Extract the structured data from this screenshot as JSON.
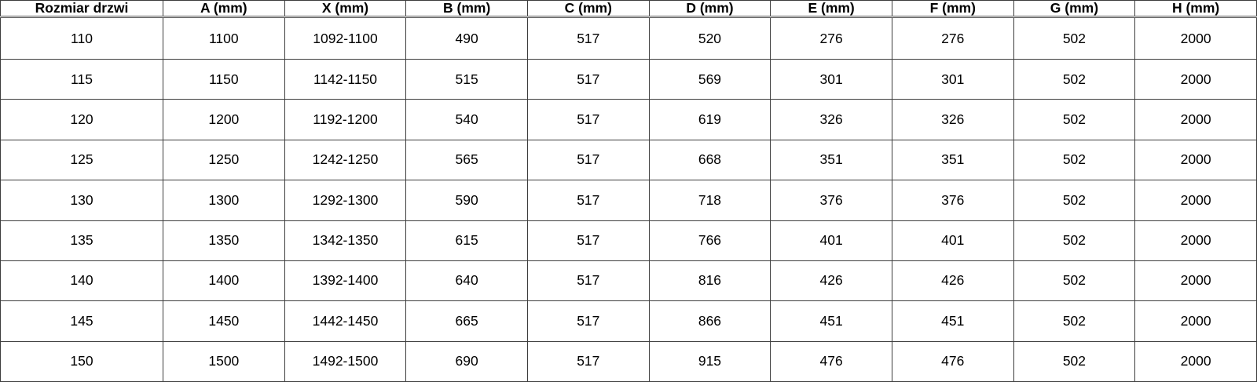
{
  "table": {
    "name": "door-dimensions-table",
    "columns": [
      "Rozmiar drzwi",
      "A (mm)",
      "X (mm)",
      "B (mm)",
      "C (mm)",
      "D (mm)",
      "E (mm)",
      "F (mm)",
      "G (mm)",
      "H (mm)"
    ],
    "rows": [
      [
        "110",
        "1100",
        "1092-1100",
        "490",
        "517",
        "520",
        "276",
        "276",
        "502",
        "2000"
      ],
      [
        "115",
        "1150",
        "1142-1150",
        "515",
        "517",
        "569",
        "301",
        "301",
        "502",
        "2000"
      ],
      [
        "120",
        "1200",
        "1192-1200",
        "540",
        "517",
        "619",
        "326",
        "326",
        "502",
        "2000"
      ],
      [
        "125",
        "1250",
        "1242-1250",
        "565",
        "517",
        "668",
        "351",
        "351",
        "502",
        "2000"
      ],
      [
        "130",
        "1300",
        "1292-1300",
        "590",
        "517",
        "718",
        "376",
        "376",
        "502",
        "2000"
      ],
      [
        "135",
        "1350",
        "1342-1350",
        "615",
        "517",
        "766",
        "401",
        "401",
        "502",
        "2000"
      ],
      [
        "140",
        "1400",
        "1392-1400",
        "640",
        "517",
        "816",
        "426",
        "426",
        "502",
        "2000"
      ],
      [
        "145",
        "1450",
        "1442-1450",
        "665",
        "517",
        "866",
        "451",
        "451",
        "502",
        "2000"
      ],
      [
        "150",
        "1500",
        "1492-1500",
        "690",
        "517",
        "915",
        "476",
        "476",
        "502",
        "2000"
      ]
    ],
    "colors": {
      "border": "#3d3d3d",
      "header_separator": "#595959",
      "text": "#000000",
      "background": "#ffffff"
    }
  }
}
